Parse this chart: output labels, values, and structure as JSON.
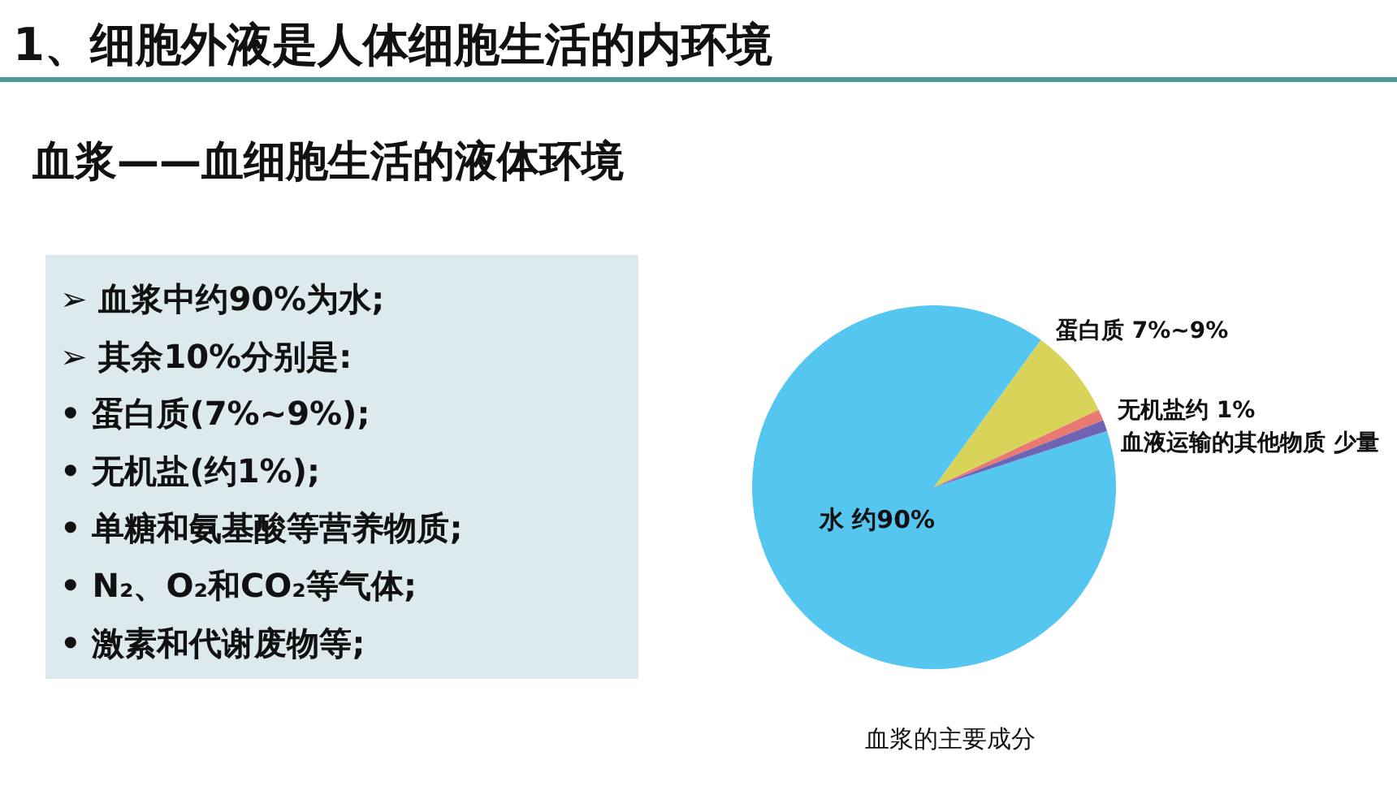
{
  "chart_data": {
    "type": "pie",
    "title": "1、细胞外液是人体细胞生活的内环境",
    "subtitle": "血浆——血细胞生活的液体环境",
    "categories": [
      "水 约90%",
      "蛋白质 7%~9%",
      "无机盐约 1%",
      "血液运输的其他物质 少量"
    ],
    "values": [
      90,
      8,
      1,
      1
    ],
    "colors": [
      "#55c6ef",
      "#d8d45a",
      "#e97a72",
      "#6f63b3"
    ],
    "annotations": [
      "➢ 血浆中约90%为水;",
      "➢ 其余10%分别是:",
      "• 蛋白质(7%~9%);",
      "• 无机盐(约1%);",
      "• 单糖和氨基酸等营养物质;",
      "• N₂、O₂和CO₂等气体;",
      "• 激素和代谢废物等;",
      "血浆的主要成分"
    ]
  }
}
